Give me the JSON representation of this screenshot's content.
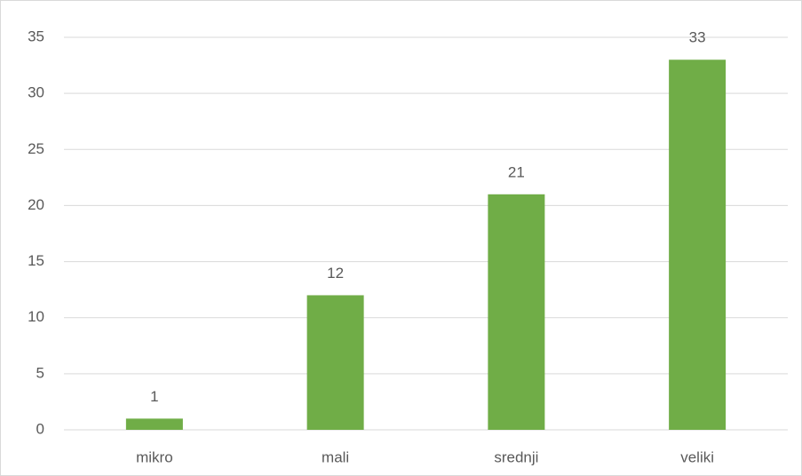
{
  "chart_data": {
    "type": "bar",
    "categories": [
      "mikro",
      "mali",
      "srednji",
      "veliki"
    ],
    "values": [
      1,
      12,
      21,
      33
    ],
    "color": "#70ad47",
    "ylim": [
      0,
      35
    ],
    "yticks": [
      0,
      5,
      10,
      15,
      20,
      25,
      30,
      35
    ],
    "grid": true,
    "data_labels": true
  }
}
